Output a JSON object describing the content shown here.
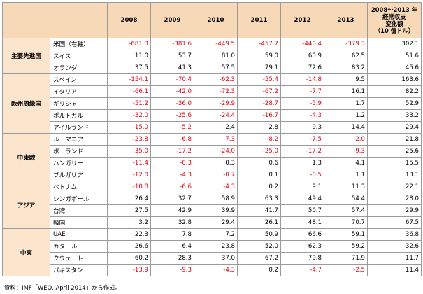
{
  "header": {
    "years": [
      "2008",
      "2009",
      "2010",
      "2011",
      "2012",
      "2013"
    ],
    "change_lines": [
      "2008～2013 年",
      "経常収支",
      "変化額",
      "（10 億ドル）"
    ]
  },
  "groups": [
    {
      "name": "主要先進国",
      "rows": [
        {
          "country": "米国（右軸）",
          "values": [
            "-681.3",
            "-381.6",
            "-449.5",
            "-457.7",
            "-440.4",
            "-379.3"
          ],
          "change": "302.1"
        },
        {
          "country": "スイス",
          "values": [
            "11.0",
            "53.7",
            "81.0",
            "59.0",
            "60.9",
            "62.5"
          ],
          "change": "51.6"
        },
        {
          "country": "オランダ",
          "values": [
            "37.5",
            "41.3",
            "57.5",
            "79.1",
            "72.6",
            "83.2"
          ],
          "change": "45.6"
        }
      ]
    },
    {
      "name": "欧州周縁国",
      "rows": [
        {
          "country": "スペイン",
          "values": [
            "-154.1",
            "-70.4",
            "-62.3",
            "-55.4",
            "-14.8",
            "9.5"
          ],
          "change": "163.6"
        },
        {
          "country": "イタリア",
          "values": [
            "-66.1",
            "-42.0",
            "-72.3",
            "-67.2",
            "-7.7",
            "16.1"
          ],
          "change": "82.2"
        },
        {
          "country": "ギリシャ",
          "values": [
            "-51.2",
            "-36.0",
            "-29.9",
            "-28.7",
            "-5.9",
            "1.7"
          ],
          "change": "52.9"
        },
        {
          "country": "ポルトガル",
          "values": [
            "-32.0",
            "-25.6",
            "-24.4",
            "-16.7",
            "-4.3",
            "1.2"
          ],
          "change": "33.2"
        },
        {
          "country": "アイルランド",
          "values": [
            "-15.0",
            "-5.2",
            "2.4",
            "2.8",
            "9.3",
            "14.4"
          ],
          "change": "29.4"
        }
      ]
    },
    {
      "name": "中東欧",
      "rows": [
        {
          "country": "ルーマニア",
          "values": [
            "-23.8",
            "-6.8",
            "-7.3",
            "-8.2",
            "-7.5",
            "-2.0"
          ],
          "change": "21.8"
        },
        {
          "country": "ポーランド",
          "values": [
            "-35.0",
            "-17.2",
            "-24.0",
            "-25.0",
            "-17.2",
            "-9.3"
          ],
          "change": "25.6"
        },
        {
          "country": "ハンガリー",
          "values": [
            "-11.4",
            "-0.3",
            "0.3",
            "0.6",
            "1.3",
            "4.1"
          ],
          "change": "15.5"
        },
        {
          "country": "ブルガリア",
          "values": [
            "-12.0",
            "-4.3",
            "-0.7",
            "0.1",
            "-0.5",
            "1.1"
          ],
          "change": "13.1"
        }
      ]
    },
    {
      "name": "アジア",
      "rows": [
        {
          "country": "ベトナム",
          "values": [
            "-10.8",
            "-6.6",
            "-4.3",
            "0.2",
            "9.1",
            "11.3"
          ],
          "change": "22.1"
        },
        {
          "country": "シンガポール",
          "values": [
            "26.4",
            "32.7",
            "58.9",
            "63.3",
            "49.4",
            "54.4"
          ],
          "change": "28.0"
        },
        {
          "country": "台湾",
          "values": [
            "27.5",
            "42.9",
            "39.9",
            "41.7",
            "50.7",
            "57.4"
          ],
          "change": "29.9"
        },
        {
          "country": "韓国",
          "values": [
            "3.2",
            "32.8",
            "29.4",
            "26.1",
            "48.1",
            "70.7"
          ],
          "change": "67.5"
        }
      ]
    },
    {
      "name": "中東",
      "rows": [
        {
          "country": "UAE",
          "values": [
            "22.3",
            "7.8",
            "7.2",
            "50.9",
            "66.6",
            "59.1"
          ],
          "change": "36.8"
        },
        {
          "country": "カタール",
          "values": [
            "26.6",
            "6.4",
            "23.8",
            "52.0",
            "62.3",
            "59.2"
          ],
          "change": "32.6"
        },
        {
          "country": "クウェート",
          "values": [
            "60.2",
            "28.3",
            "37.0",
            "67.2",
            "79.8",
            "71.9"
          ],
          "change": "11.7"
        },
        {
          "country": "パキスタン",
          "values": [
            "-13.9",
            "-9.3",
            "-4.3",
            "0.2",
            "-4.7",
            "-2.5"
          ],
          "change": "11.4"
        }
      ]
    }
  ],
  "footnote": "資料：IMF「WEO, April 2014」から作成。",
  "colors": {
    "negative": "#e60012",
    "header_bg": "#f7d9b8",
    "group_bg": "#fbe5cd",
    "border": "#9a9a9a"
  }
}
